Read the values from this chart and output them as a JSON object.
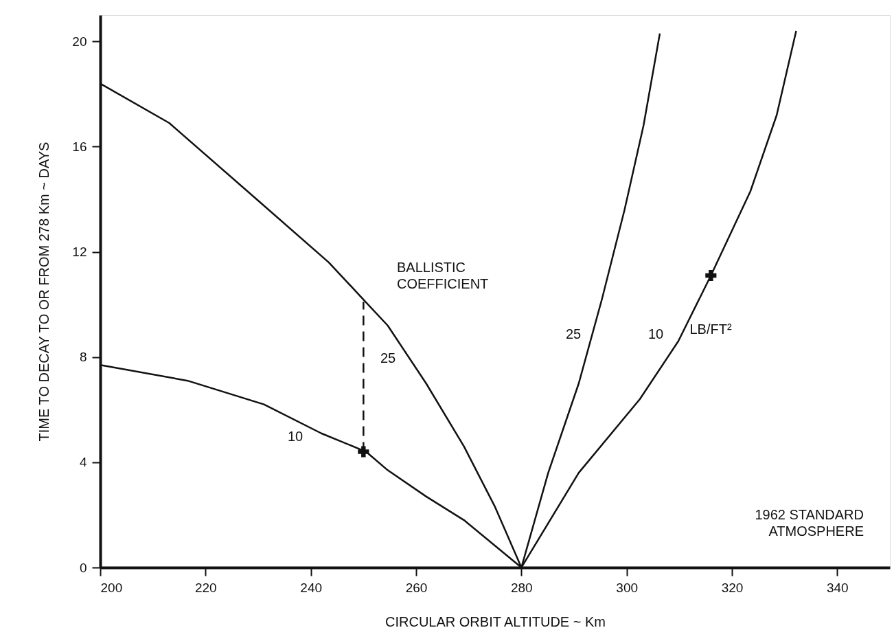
{
  "chart_data": {
    "type": "line",
    "xlabel": "CIRCULAR ORBIT ALTITUDE ~ Km",
    "ylabel": "TIME TO DECAY TO OR FROM 278 Km ~ DAYS",
    "xlim": [
      200,
      350
    ],
    "xticks": [
      200,
      220,
      240,
      260,
      280,
      300,
      320,
      340
    ],
    "ylim": [
      0,
      21
    ],
    "yticks": [
      0,
      4,
      8,
      12,
      16,
      20
    ],
    "grid": false,
    "marker": "none",
    "line_style": "solid",
    "series": [
      {
        "color": "#111111",
        "x": [
          200,
          213.1,
          229.7,
          243.4,
          250.4,
          254.6,
          261.9,
          269.1,
          275,
          280
        ],
        "values": [
          18.4,
          16.9,
          14.0,
          11.6,
          10.1,
          9.2,
          7.0,
          4.6,
          2.3,
          0
        ]
      },
      {
        "color": "#111111",
        "x": [
          200,
          216.6,
          231.1,
          242,
          250.5,
          254.6,
          261.9,
          269.1,
          280
        ],
        "values": [
          7.7,
          7.1,
          6.2,
          5.1,
          4.4,
          3.7,
          2.7,
          1.8,
          0
        ]
      },
      {
        "color": "#111111",
        "x": [
          280,
          285.1,
          290.9,
          295.3,
          299.6,
          303.2,
          306.3
        ],
        "values": [
          0,
          3.6,
          7.0,
          10.2,
          13.6,
          16.8,
          20.3
        ]
      },
      {
        "color": "#111111",
        "x": [
          280,
          290.9,
          302.5,
          309.8,
          316,
          323.5,
          328.5,
          332.2
        ],
        "values": [
          0,
          3.6,
          6.4,
          8.6,
          11.1,
          14.3,
          17.2,
          20.4
        ]
      },
      {
        "color": "#111111",
        "line_style": "dashed",
        "x": [
          250,
          250
        ],
        "values": [
          4.4,
          10.1
        ]
      },
      {
        "type": "scatter",
        "color": "#111111",
        "marker": "cross",
        "x": [
          250,
          316
        ],
        "values": [
          4.4,
          11.1
        ]
      }
    ],
    "annotations": [
      "25",
      "10",
      "25",
      "10",
      "LB/FT²",
      "BALLISTIC\nCOEFFICIENT",
      "1962  STANDARD\nATMOSPHERE"
    ]
  }
}
